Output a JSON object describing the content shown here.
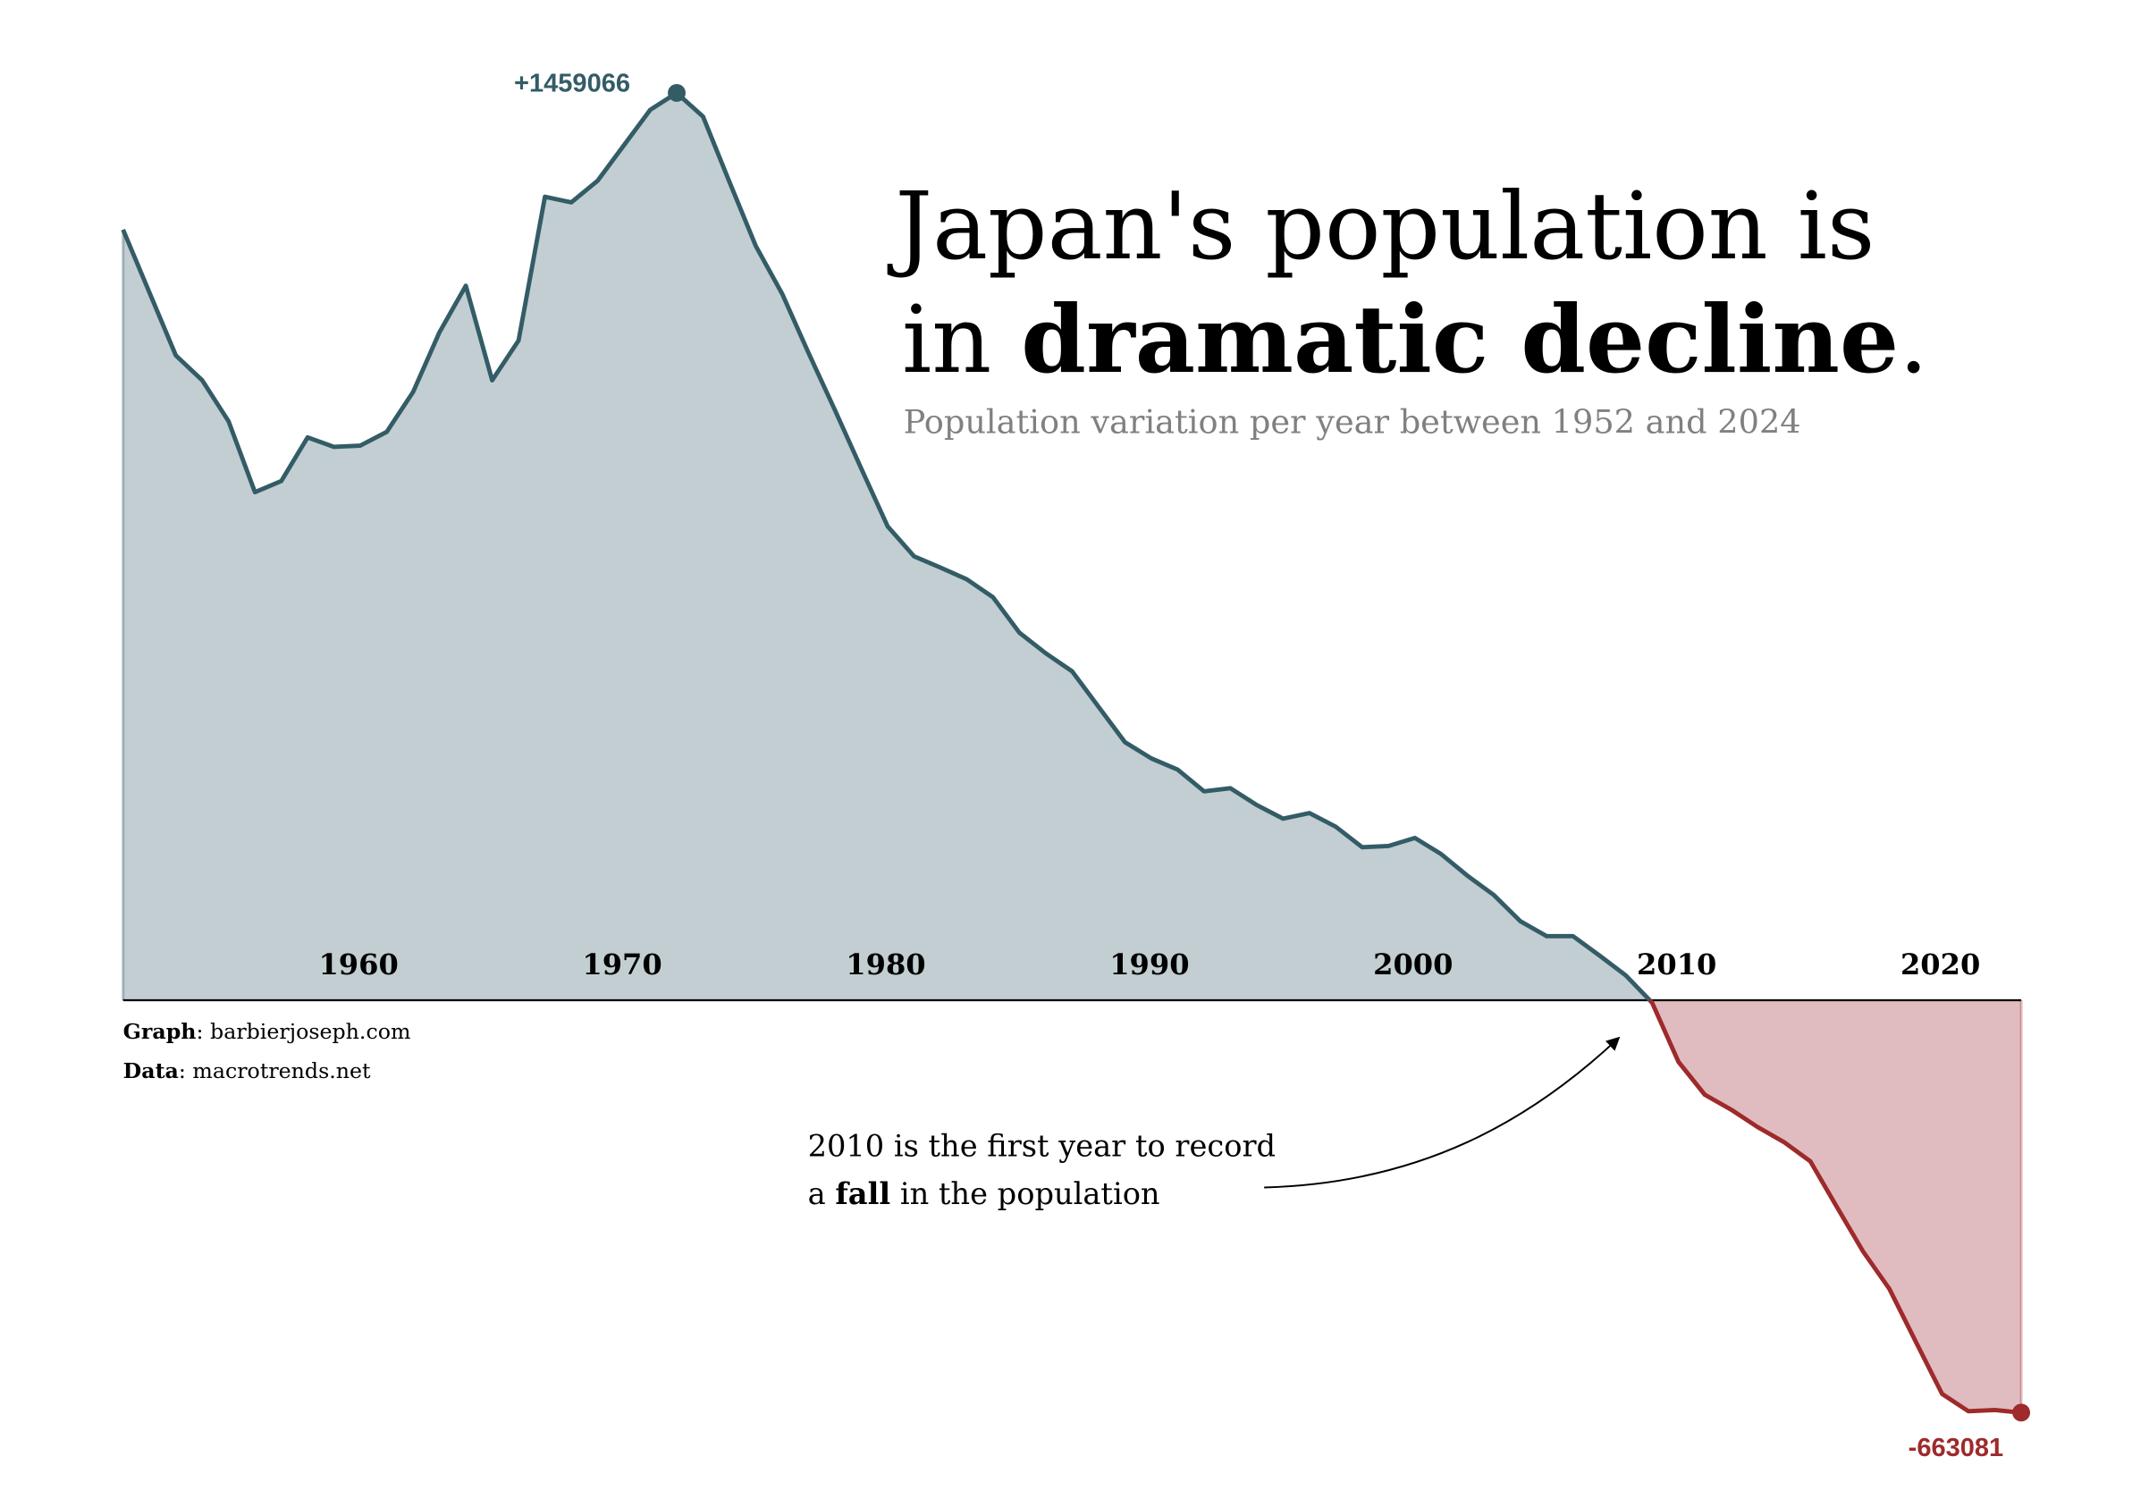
{
  "title": {
    "line1": "Japan's population is",
    "line2_prefix": "in ",
    "line2_bold": "dramatic decline",
    "line2_suffix": "."
  },
  "subtitle": "Population variation per year between 1952 and 2024",
  "credits": {
    "graph_label": "Graph",
    "graph_value": ": barbierjoseph.com",
    "data_label": "Data",
    "data_value": ": macrotrends.net"
  },
  "annotation": {
    "line1": "2010 is the first year to record",
    "line2_prefix": "a ",
    "line2_bold": "fall",
    "line2_suffix": " in the population"
  },
  "colors": {
    "positive_line": "#335c67",
    "positive_fill": "#c2ced2",
    "negative_line": "#9e2a2b",
    "negative_fill": "#e0bcc0",
    "axis": "#000000",
    "subtitle": "#808080"
  },
  "chart_data": {
    "type": "area",
    "xlabel": "",
    "ylabel": "",
    "grid": false,
    "xlim": [
      1952,
      2024
    ],
    "ylim": [
      -663081,
      1459066
    ],
    "xticks": [
      1960,
      1970,
      1980,
      1990,
      2000,
      2010,
      2020
    ],
    "xtick_labels": [
      "1960",
      "1970",
      "1980",
      "1990",
      "2000",
      "2010",
      "2020"
    ],
    "max_label": "+1459066",
    "min_label": "-663081",
    "x": [
      1952,
      1953,
      1954,
      1955,
      1956,
      1957,
      1958,
      1959,
      1960,
      1961,
      1962,
      1963,
      1964,
      1965,
      1966,
      1967,
      1968,
      1969,
      1970,
      1971,
      1972,
      1973,
      1974,
      1975,
      1976,
      1977,
      1978,
      1979,
      1980,
      1981,
      1982,
      1983,
      1984,
      1985,
      1986,
      1987,
      1988,
      1989,
      1990,
      1991,
      1992,
      1993,
      1994,
      1995,
      1996,
      1997,
      1998,
      1999,
      2000,
      2001,
      2002,
      2003,
      2004,
      2005,
      2006,
      2007,
      2008,
      2009,
      2010,
      2011,
      2012,
      2013,
      2014,
      2015,
      2016,
      2017,
      2018,
      2019,
      2020,
      2021,
      2022,
      2023,
      2024
    ],
    "values": [
      1239000,
      1138000,
      1037000,
      997000,
      931000,
      817000,
      835000,
      905000,
      890000,
      892000,
      914000,
      978000,
      1074000,
      1149000,
      997000,
      1061000,
      1292000,
      1283000,
      1318000,
      1375000,
      1432000,
      1459066,
      1421000,
      1316000,
      1213000,
      1136000,
      1041000,
      949000,
      855000,
      762000,
      714000,
      696000,
      677000,
      648000,
      591000,
      558000,
      529000,
      472000,
      415000,
      389000,
      371000,
      336000,
      341000,
      314000,
      292000,
      301000,
      279000,
      246000,
      248000,
      261000,
      235000,
      200000,
      169000,
      127000,
      103000,
      103000,
      72000,
      40000,
      -4000,
      -99000,
      -152000,
      -176000,
      -204000,
      -228000,
      -259000,
      -332000,
      -404000,
      -464000,
      -549000,
      -633000,
      -661000,
      -659000,
      -663081
    ]
  }
}
